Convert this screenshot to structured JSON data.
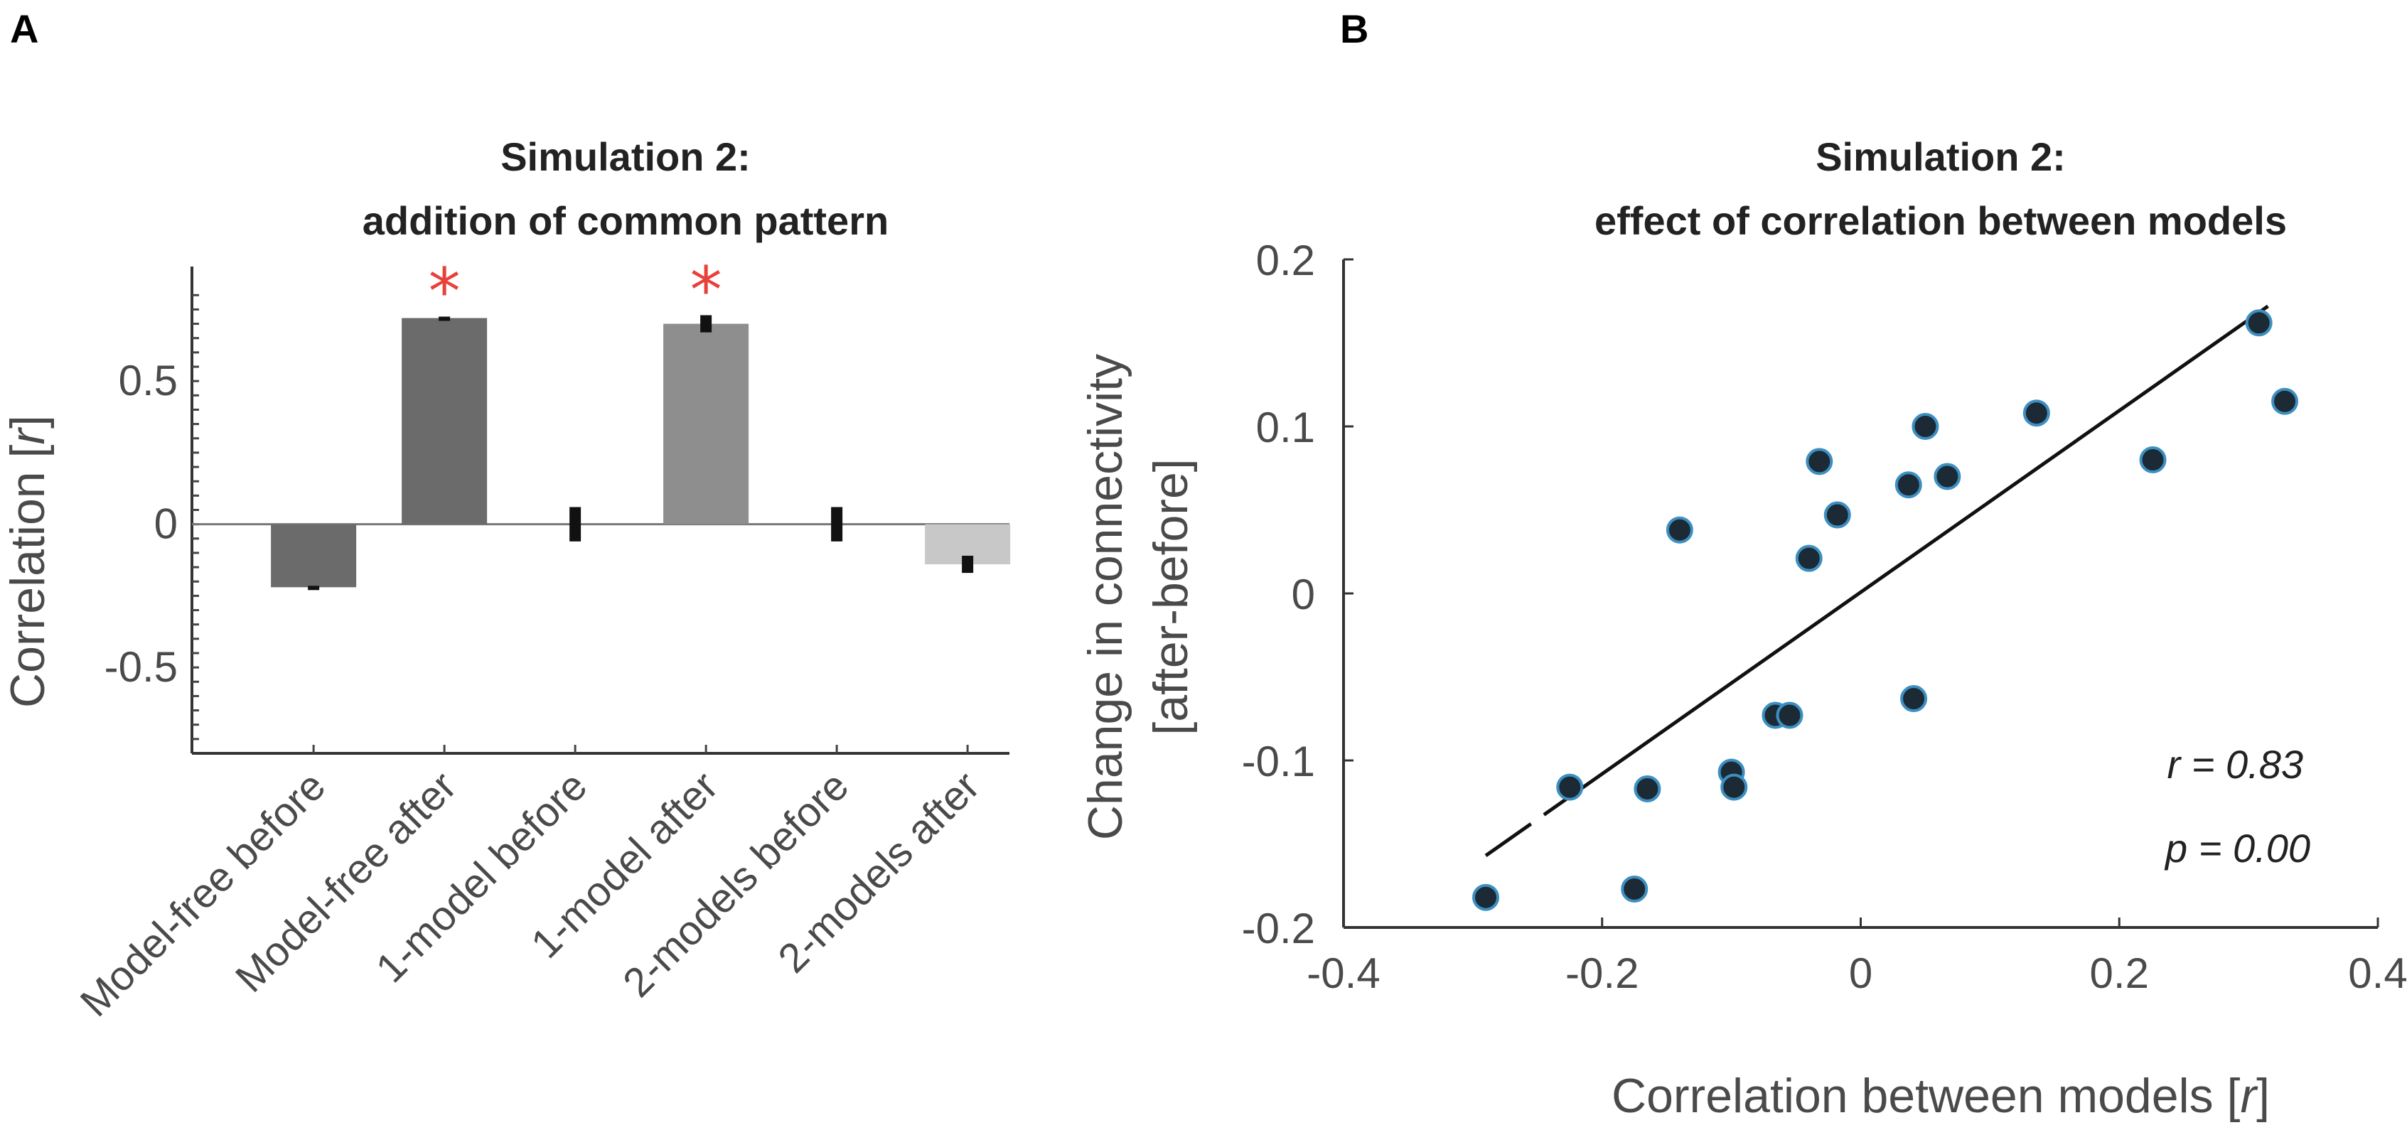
{
  "panels": {
    "a_label": "A",
    "b_label": "B"
  },
  "chart_data": [
    {
      "type": "bar",
      "title_line1": "Simulation 2:",
      "title_line2": "addition of common pattern",
      "ylabel_prefix": "Correlation [",
      "ylabel_var": "r",
      "ylabel_suffix": "]",
      "ylim": [
        -0.8,
        0.9
      ],
      "yticks": [
        -0.5,
        0,
        0.5
      ],
      "ytick_labels": [
        "-0.5",
        "0",
        "0.5"
      ],
      "categories": [
        "Model-free before",
        "Model-free after",
        "1-model before",
        "1-model after",
        "2-models before",
        "2-models after"
      ],
      "values": [
        -0.22,
        0.72,
        0.0,
        0.7,
        0.0,
        -0.14
      ],
      "errors": [
        0.005,
        0.005,
        0.06,
        0.03,
        0.06,
        0.03
      ],
      "bar_colors": [
        "#6b6b6b",
        "#6b6b6b",
        "#8e8e8e",
        "#8e8e8e",
        "#c8c8c8",
        "#c8c8c8"
      ],
      "significant": [
        false,
        true,
        false,
        true,
        false,
        false
      ],
      "significance_marker": "*",
      "significance_color": "#e8413b"
    },
    {
      "type": "scatter",
      "title_line1": "Simulation 2:",
      "title_line2": "effect of correlation between models",
      "xlabel_prefix": "Correlation between models [",
      "xlabel_var": "r",
      "xlabel_suffix": "]",
      "ylabel_line1": "Change in connectivity",
      "ylabel_line2": "[after-before]",
      "xlim": [
        -0.4,
        0.4
      ],
      "ylim": [
        -0.2,
        0.2
      ],
      "xticks": [
        -0.4,
        -0.2,
        0,
        0.2,
        0.4
      ],
      "xtick_labels": [
        "-0.4",
        "-0.2",
        "0",
        "0.2",
        "0.4"
      ],
      "yticks": [
        -0.2,
        -0.1,
        0,
        0.1,
        0.2
      ],
      "ytick_labels": [
        "-0.2",
        "-0.1",
        "0",
        "0.1",
        "0.2"
      ],
      "x": [
        -0.29,
        -0.225,
        -0.175,
        -0.165,
        -0.14,
        -0.1,
        -0.098,
        -0.066,
        -0.055,
        -0.04,
        -0.032,
        -0.018,
        0.037,
        0.041,
        0.05,
        0.067,
        0.136,
        0.226,
        0.308,
        0.328
      ],
      "y": [
        -0.182,
        -0.116,
        -0.177,
        -0.117,
        0.038,
        -0.107,
        -0.116,
        -0.073,
        -0.073,
        0.021,
        0.079,
        0.047,
        0.065,
        -0.063,
        0.1,
        0.07,
        0.108,
        0.08,
        0.162,
        0.115
      ],
      "point_color": "#1b2a35",
      "point_edge": "#3d8fc2",
      "fit_line": {
        "x0": -0.29,
        "y0": -0.157,
        "x1": 0.315,
        "y1": 0.172,
        "gap_from": -0.255,
        "gap_to": -0.245
      },
      "r_text": "r = 0.83",
      "p_text": "p = 0.00"
    }
  ]
}
